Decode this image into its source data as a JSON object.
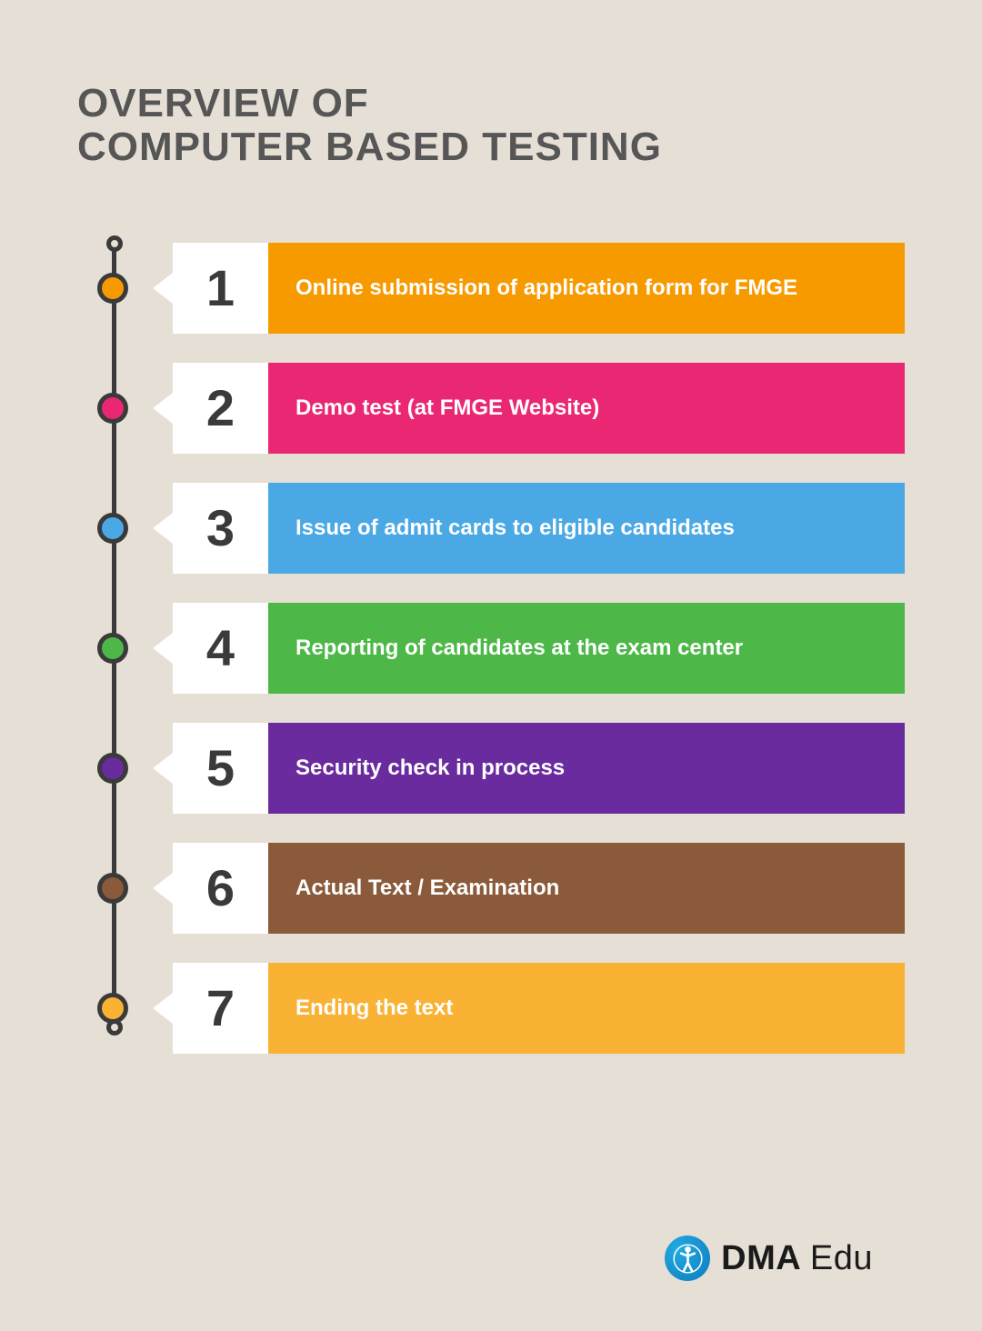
{
  "title": "OVERVIEW OF\nCOMPUTER BASED TESTING",
  "title_color": "#565656",
  "title_fontsize": 44,
  "background_color": "#e6dfd6",
  "timeline_line_color": "#3a3a3a",
  "step_number_fontsize": 56,
  "step_number_color": "#3a3a3a",
  "step_text_fontsize": 24,
  "step_text_color": "#ffffff",
  "number_box_bg": "#ffffff",
  "steps": [
    {
      "number": "1",
      "label": "Online submission of application form for FMGE",
      "color": "#f79a00"
    },
    {
      "number": "2",
      "label": "Demo test (at FMGE Website)",
      "color": "#ea2772"
    },
    {
      "number": "3",
      "label": "Issue of admit cards to eligible candidates",
      "color": "#4aa9e4"
    },
    {
      "number": "4",
      "label": "Reporting of candidates at the exam center",
      "color": "#4db848"
    },
    {
      "number": "5",
      "label": "Security check in process",
      "color": "#6a2b9e"
    },
    {
      "number": "6",
      "label": "Actual Text / Examination",
      "color": "#8a5a3a"
    },
    {
      "number": "7",
      "label": "Ending the text",
      "color": "#f9b233"
    }
  ],
  "logo": {
    "main": "DMA",
    "sub": "Edu",
    "text_color": "#1a1a1a",
    "circle_color_outer": "#0d7cbf",
    "circle_color_inner": "#22aae0",
    "circle_size": 50,
    "fontsize": 38
  }
}
